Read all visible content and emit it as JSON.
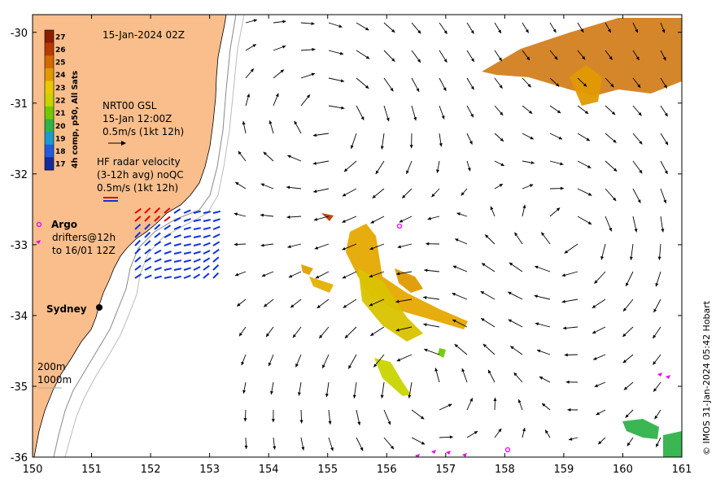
{
  "map": {
    "timestamp": "15-Jan-2024 02Z",
    "lon_range": [
      150,
      161
    ],
    "lat_range": [
      -36,
      -29.75
    ],
    "x_ticks": [
      "150",
      "151",
      "152",
      "153",
      "154",
      "155",
      "156",
      "157",
      "158",
      "159",
      "160",
      "161"
    ],
    "y_ticks": [
      "-30",
      "-31",
      "-32",
      "-33",
      "-34",
      "-35",
      "-36"
    ],
    "land_color": "#f9be8c",
    "credit": "© IMOS 31-Jan-2024 05:42 Hobart"
  },
  "colorbar": {
    "title": "4h comp, p50, All Sats",
    "labels": [
      "27",
      "26",
      "25",
      "24",
      "23",
      "22",
      "21",
      "20",
      "19",
      "18",
      "17"
    ],
    "colors": [
      "#8b1e00",
      "#b83a00",
      "#d36a00",
      "#e09a00",
      "#e9c800",
      "#c7d400",
      "#72c800",
      "#2fb24a",
      "#1a9ad0",
      "#1f5ce0",
      "#162a9c"
    ]
  },
  "gsl_legend": {
    "line1": "NRT00 GSL",
    "line2": "15-Jan 12:00Z",
    "line3": "0.5m/s (1kt 12h)"
  },
  "hf_legend": {
    "line1": "HF radar velocity",
    "line2": "(3-12h avg) noQC",
    "line3": "0.5m/s (1kt 12h)",
    "arrow_colors": [
      "#e00000",
      "#1030e0"
    ]
  },
  "argo_legend": {
    "title": "Argo",
    "line1": "drifters@12h",
    "line2": "to 16/01 12Z"
  },
  "places": {
    "sydney": "Sydney"
  },
  "depth_legend": {
    "line1": "200m",
    "line2": "1000m"
  }
}
